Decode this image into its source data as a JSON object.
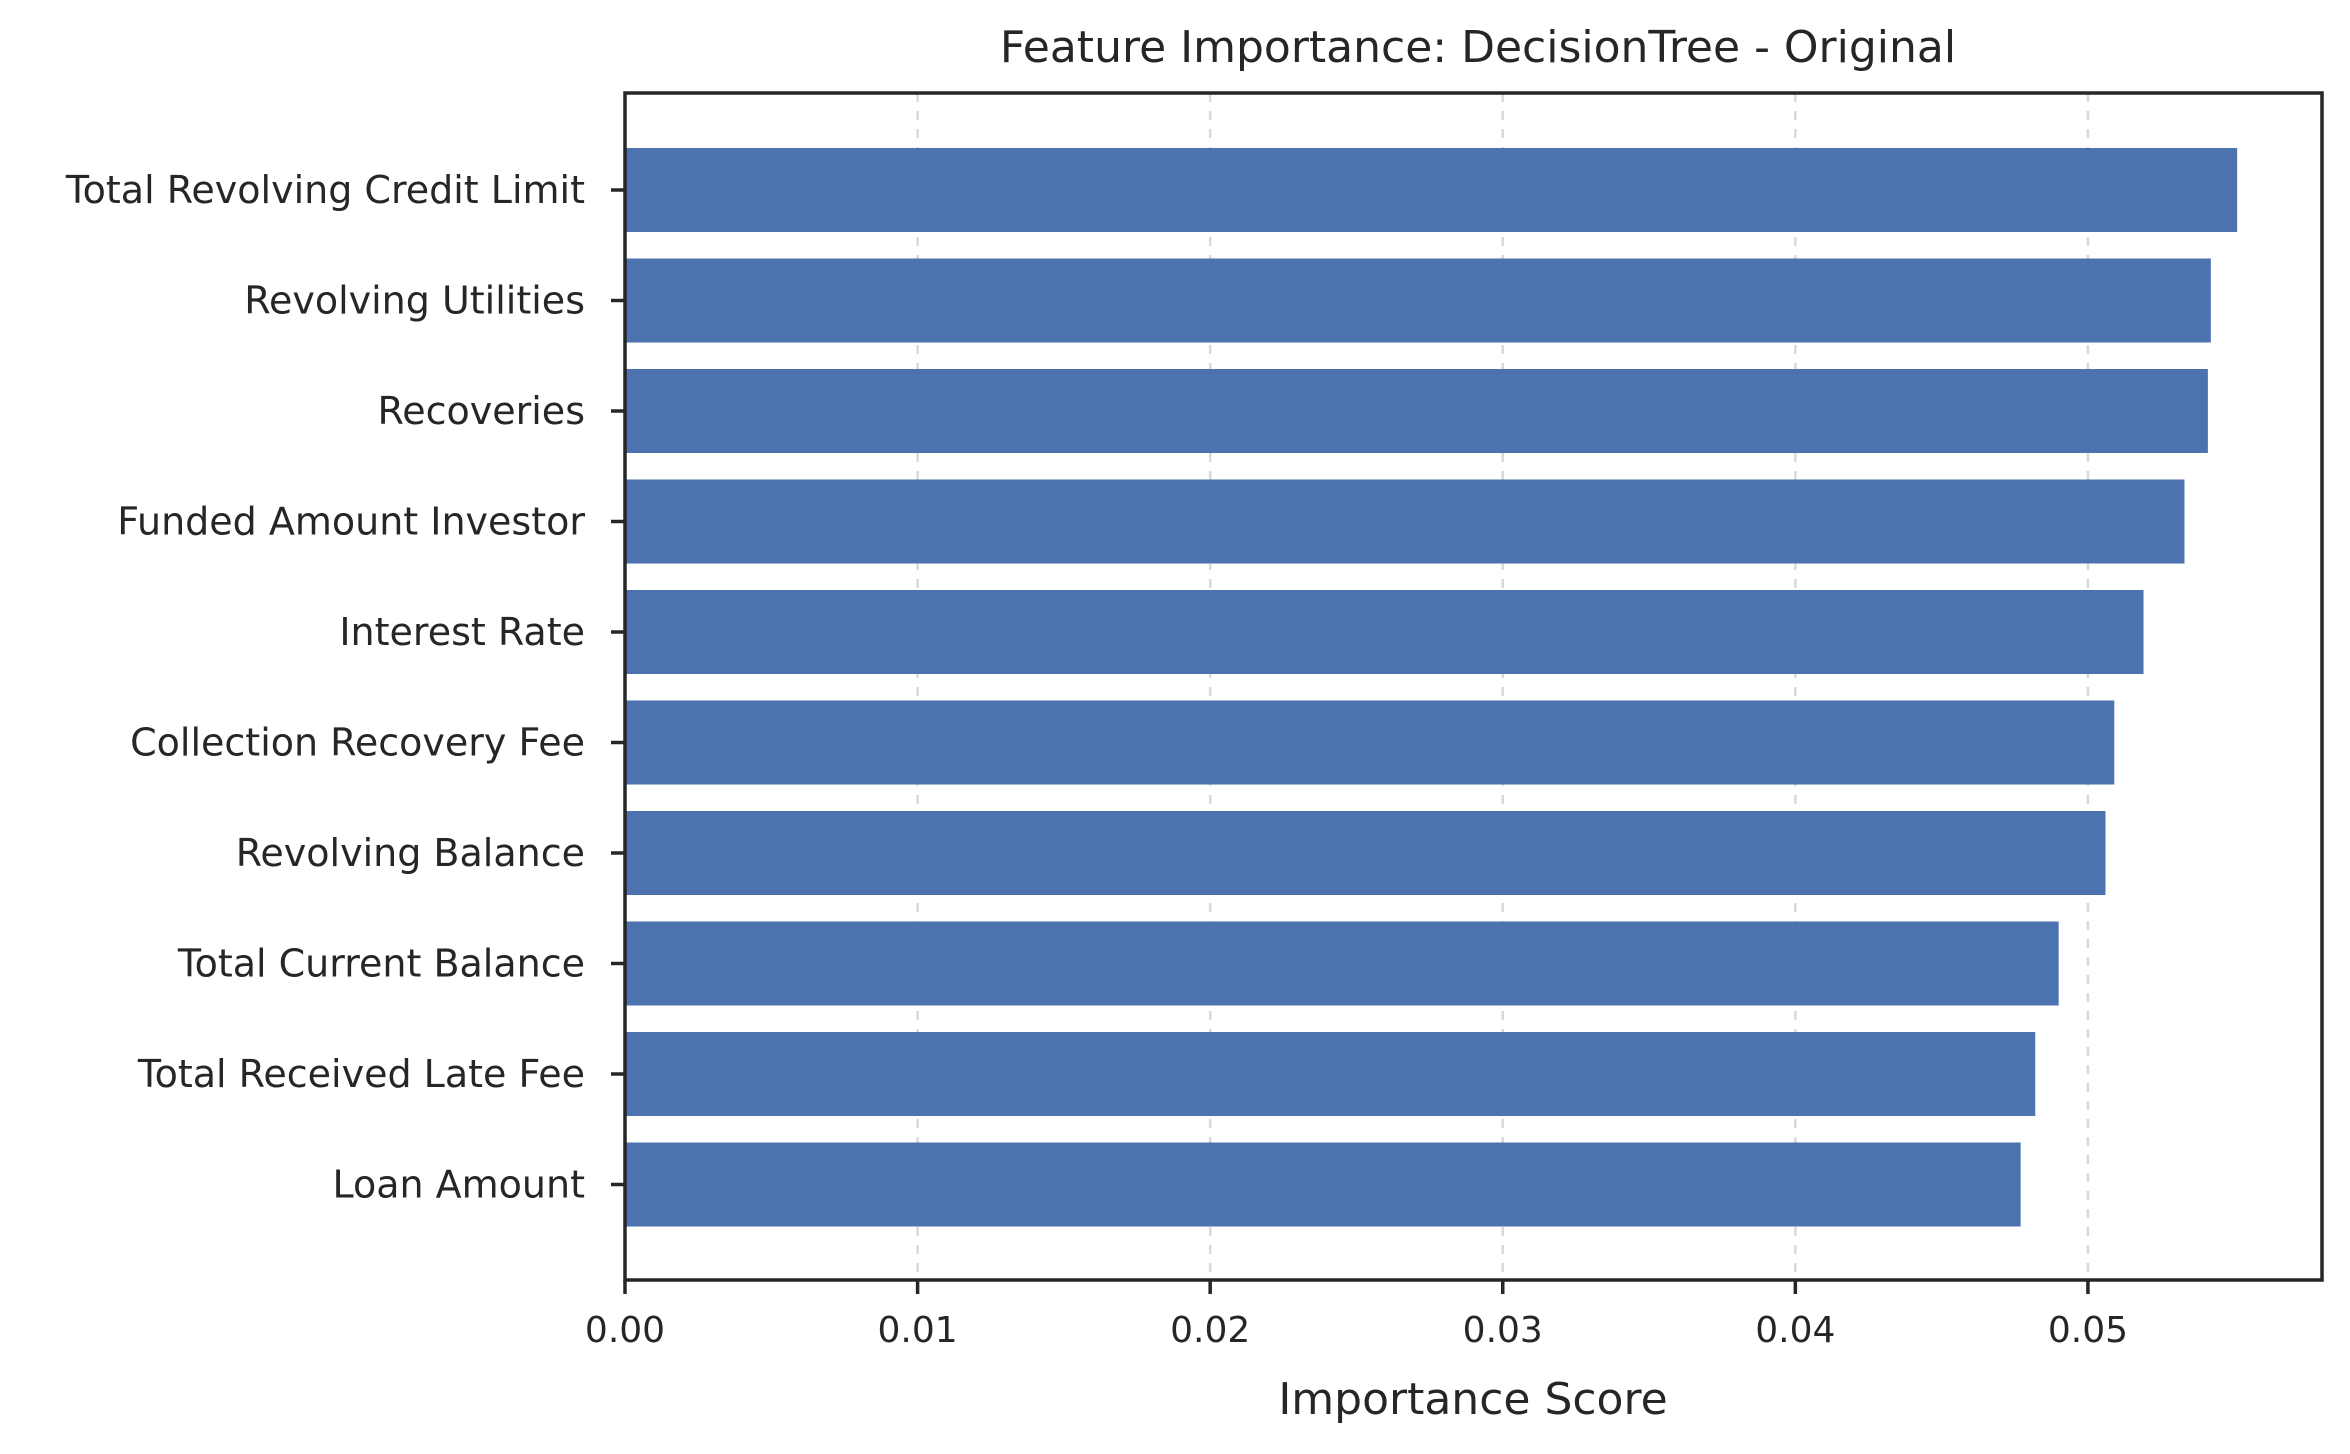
{
  "chart_data": {
    "type": "bar",
    "orientation": "horizontal",
    "title": "Feature Importance: DecisionTree - Original",
    "xlabel": "Importance Score",
    "ylabel": "",
    "bar_color": "#4c72b0",
    "categories": [
      "Total Revolving Credit Limit",
      "Revolving Utilities",
      "Recoveries",
      "Funded Amount Investor",
      "Interest Rate",
      "Collection Recovery Fee",
      "Revolving Balance",
      "Total Current Balance",
      "Total Received Late Fee",
      "Loan Amount"
    ],
    "values": [
      0.0551,
      0.0542,
      0.0541,
      0.0533,
      0.0519,
      0.0509,
      0.0506,
      0.049,
      0.0482,
      0.0477
    ],
    "xlim": [
      0,
      0.058
    ],
    "xticks": [
      0.0,
      0.01,
      0.02,
      0.03,
      0.04,
      0.05
    ],
    "xtick_labels": [
      "0.00",
      "0.01",
      "0.02",
      "0.03",
      "0.04",
      "0.05"
    ],
    "grid": "x-axis, dashed",
    "legend": "none"
  }
}
